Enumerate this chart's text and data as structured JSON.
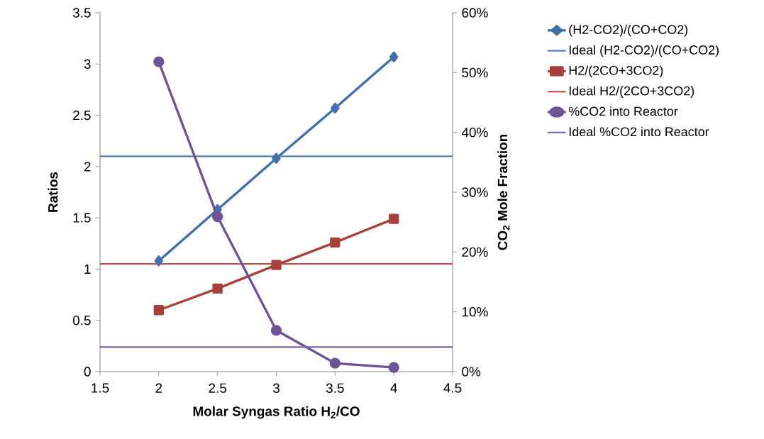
{
  "chart_data": {
    "type": "line",
    "xlabel": "Molar Syngas Ratio H$_{2}$/CO",
    "ylabel": "Ratios",
    "y2label": "CO$_{2}$ Mole Fraction",
    "xlim": [
      1.5,
      4.5
    ],
    "xticks": [
      1.5,
      2,
      2.5,
      3,
      3.5,
      4,
      4.5
    ],
    "ylim": [
      0,
      3.5
    ],
    "yticks": [
      0,
      0.5,
      1,
      1.5,
      2,
      2.5,
      3,
      3.5
    ],
    "y2lim": [
      0,
      60
    ],
    "y2ticks": [
      {
        "value": 0,
        "label": "0%"
      },
      {
        "value": 10,
        "label": "10%"
      },
      {
        "value": 20,
        "label": "20%"
      },
      {
        "value": 30,
        "label": "30%"
      },
      {
        "value": 40,
        "label": "40%"
      },
      {
        "value": 50,
        "label": "50%"
      },
      {
        "value": 60,
        "label": "60%"
      }
    ],
    "x": [
      2,
      2.5,
      3,
      3.5,
      4
    ],
    "legend": "right",
    "grid": false,
    "line_style": "solid",
    "series": [
      {
        "name": "(H2-CO2)/(CO+CO2)",
        "color": "#4470a8",
        "marker": "diamond",
        "values": [
          1.08,
          1.58,
          2.08,
          2.57,
          3.07
        ]
      },
      {
        "name": "H2/(2CO+3CO2)",
        "color": "#a8403e",
        "marker": "square",
        "values": [
          0.6,
          0.81,
          1.04,
          1.26,
          1.49
        ]
      },
      {
        "name": "%CO2 into Reactor",
        "color": "#6f5495",
        "marker": "circle",
        "axis": "y2",
        "values": [
          51.8,
          25.9,
          6.9,
          1.4,
          0.7
        ]
      }
    ],
    "ref_lines": [
      {
        "axis": "y",
        "value": 2.1,
        "label": "Ideal (H2-CO2)/(CO+CO2)",
        "color": "#4a7ebb"
      },
      {
        "axis": "y",
        "value": 1.05,
        "label": "Ideal H2/(2CO+3CO2)",
        "color": "#c0504d"
      },
      {
        "axis": "y2",
        "value": 4.1,
        "label": "Ideal %CO2 into Reactor",
        "color": "#8064a2"
      }
    ]
  }
}
